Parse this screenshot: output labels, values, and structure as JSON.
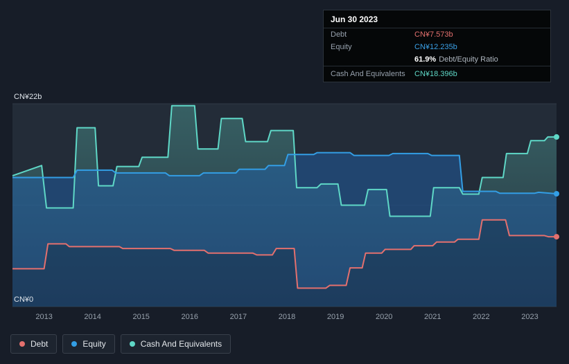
{
  "tooltip": {
    "date": "Jun 30 2023",
    "debt": {
      "label": "Debt",
      "value": "CN¥7.573b",
      "color": "#e4706e"
    },
    "equity": {
      "label": "Equity",
      "value": "CN¥12.235b",
      "color": "#3ba1e8"
    },
    "ratio": {
      "value": "61.9%",
      "label": "Debt/Equity Ratio"
    },
    "cash": {
      "label": "Cash And Equivalents",
      "value": "CN¥18.396b",
      "color": "#5fd8c7"
    }
  },
  "legend": {
    "items": [
      {
        "label": "Debt",
        "color": "#e4706e"
      },
      {
        "label": "Equity",
        "color": "#339ee5"
      },
      {
        "label": "Cash And Equivalents",
        "color": "#5fd8c7"
      }
    ]
  },
  "chart_data": {
    "type": "area",
    "title": "Debt, Equity and Cash history",
    "unit": "CN¥ billions",
    "xlim": [
      2012.35,
      2023.55
    ],
    "ylim": [
      0,
      22
    ],
    "x_ticks": [
      2013,
      2014,
      2015,
      2016,
      2017,
      2018,
      2019,
      2020,
      2021,
      2022,
      2023
    ],
    "y_gridlines": [
      {
        "value": 22,
        "opacity": 1
      },
      {
        "value": 11,
        "opacity": 0.5
      },
      {
        "value": 0,
        "opacity": 1
      }
    ],
    "y_axis_labels": [
      {
        "value": 22,
        "label": "CN¥22b"
      },
      {
        "value": 0,
        "label": "CN¥0"
      }
    ],
    "series": [
      {
        "name": "Cash And Equivalents",
        "slug": "cash-and-equivalents",
        "color": "#5fd8c7",
        "fill_gradient": [
          "rgba(101,216,201,0.30)",
          "rgba(101,216,201,0.05)"
        ],
        "points": [
          [
            2012.35,
            14.2
          ],
          [
            2012.95,
            15.3
          ],
          [
            2013.05,
            10.7
          ],
          [
            2013.6,
            10.7
          ],
          [
            2013.68,
            19.4
          ],
          [
            2014.05,
            19.4
          ],
          [
            2014.12,
            13.1
          ],
          [
            2014.42,
            13.1
          ],
          [
            2014.5,
            15.2
          ],
          [
            2014.95,
            15.2
          ],
          [
            2015.02,
            16.2
          ],
          [
            2015.55,
            16.2
          ],
          [
            2015.63,
            21.8
          ],
          [
            2016.1,
            21.8
          ],
          [
            2016.17,
            17.1
          ],
          [
            2016.58,
            17.1
          ],
          [
            2016.65,
            20.4
          ],
          [
            2017.08,
            20.4
          ],
          [
            2017.15,
            17.9
          ],
          [
            2017.6,
            17.9
          ],
          [
            2017.67,
            19.1
          ],
          [
            2018.13,
            19.1
          ],
          [
            2018.2,
            12.9
          ],
          [
            2018.62,
            12.9
          ],
          [
            2018.7,
            13.3
          ],
          [
            2019.05,
            13.3
          ],
          [
            2019.12,
            11.0
          ],
          [
            2019.6,
            11.0
          ],
          [
            2019.67,
            12.7
          ],
          [
            2020.05,
            12.7
          ],
          [
            2020.12,
            9.8
          ],
          [
            2020.95,
            9.8
          ],
          [
            2021.02,
            12.9
          ],
          [
            2021.55,
            12.9
          ],
          [
            2021.62,
            12.2
          ],
          [
            2021.95,
            12.2
          ],
          [
            2022.02,
            14.0
          ],
          [
            2022.45,
            14.0
          ],
          [
            2022.52,
            16.6
          ],
          [
            2022.95,
            16.6
          ],
          [
            2023.02,
            18.0
          ],
          [
            2023.3,
            18.0
          ],
          [
            2023.37,
            18.4
          ],
          [
            2023.55,
            18.4
          ]
        ],
        "latest_value": 18.396
      },
      {
        "name": "Equity",
        "slug": "equity",
        "color": "#339ee5",
        "fill": "rgba(30,100,180,0.45)",
        "points": [
          [
            2012.35,
            14.0
          ],
          [
            2013.6,
            14.0
          ],
          [
            2013.68,
            14.8
          ],
          [
            2014.4,
            14.8
          ],
          [
            2014.48,
            14.5
          ],
          [
            2015.5,
            14.5
          ],
          [
            2015.58,
            14.2
          ],
          [
            2016.2,
            14.2
          ],
          [
            2016.28,
            14.5
          ],
          [
            2016.95,
            14.5
          ],
          [
            2017.02,
            14.9
          ],
          [
            2017.55,
            14.9
          ],
          [
            2017.62,
            15.3
          ],
          [
            2017.95,
            15.3
          ],
          [
            2018.02,
            16.5
          ],
          [
            2018.55,
            16.5
          ],
          [
            2018.62,
            16.7
          ],
          [
            2019.3,
            16.7
          ],
          [
            2019.38,
            16.4
          ],
          [
            2020.1,
            16.4
          ],
          [
            2020.18,
            16.6
          ],
          [
            2020.9,
            16.6
          ],
          [
            2020.98,
            16.4
          ],
          [
            2021.55,
            16.4
          ],
          [
            2021.62,
            12.5
          ],
          [
            2022.3,
            12.5
          ],
          [
            2022.38,
            12.3
          ],
          [
            2023.1,
            12.3
          ],
          [
            2023.18,
            12.4
          ],
          [
            2023.55,
            12.24
          ]
        ],
        "latest_value": 12.235
      },
      {
        "name": "Debt",
        "slug": "debt",
        "color": "#e4706e",
        "fill": "rgba(10,14,20,0.22)",
        "points": [
          [
            2012.35,
            4.1
          ],
          [
            2013.0,
            4.1
          ],
          [
            2013.08,
            6.8
          ],
          [
            2013.45,
            6.8
          ],
          [
            2013.52,
            6.5
          ],
          [
            2014.55,
            6.5
          ],
          [
            2014.62,
            6.3
          ],
          [
            2015.6,
            6.3
          ],
          [
            2015.68,
            6.1
          ],
          [
            2016.3,
            6.1
          ],
          [
            2016.38,
            5.8
          ],
          [
            2017.3,
            5.8
          ],
          [
            2017.38,
            5.6
          ],
          [
            2017.7,
            5.6
          ],
          [
            2017.78,
            6.3
          ],
          [
            2018.15,
            6.3
          ],
          [
            2018.22,
            2.0
          ],
          [
            2018.8,
            2.0
          ],
          [
            2018.88,
            2.3
          ],
          [
            2019.22,
            2.3
          ],
          [
            2019.3,
            4.2
          ],
          [
            2019.55,
            4.2
          ],
          [
            2019.62,
            5.8
          ],
          [
            2019.95,
            5.8
          ],
          [
            2020.02,
            6.2
          ],
          [
            2020.55,
            6.2
          ],
          [
            2020.62,
            6.6
          ],
          [
            2021.0,
            6.6
          ],
          [
            2021.08,
            7.0
          ],
          [
            2021.45,
            7.0
          ],
          [
            2021.52,
            7.3
          ],
          [
            2021.95,
            7.3
          ],
          [
            2022.02,
            9.4
          ],
          [
            2022.5,
            9.4
          ],
          [
            2022.58,
            7.7
          ],
          [
            2023.3,
            7.7
          ],
          [
            2023.38,
            7.573
          ],
          [
            2023.55,
            7.573
          ]
        ],
        "latest_value": 7.573
      }
    ]
  }
}
